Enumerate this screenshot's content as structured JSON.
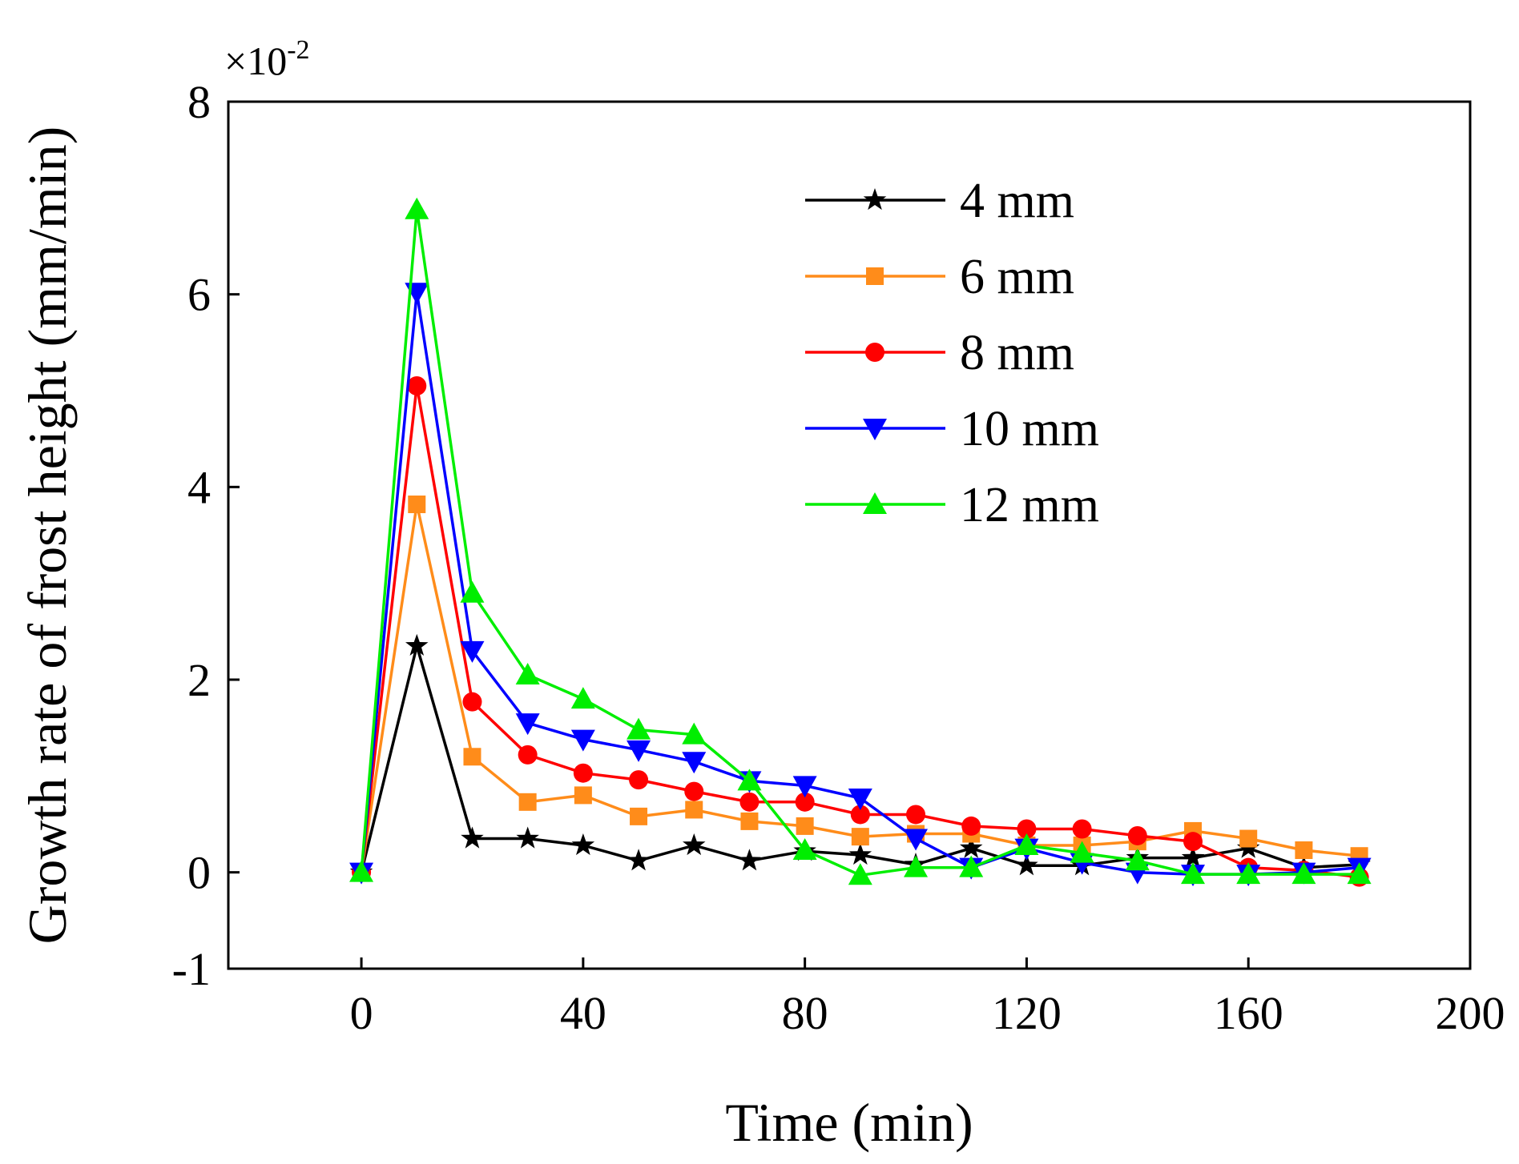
{
  "chart_data": {
    "type": "line",
    "title": "",
    "xlabel": "Time (min)",
    "ylabel": "Growth rate of frost height (mm/min)",
    "y_scale_label": "×10",
    "y_scale_exponent": "-2",
    "xlim": [
      -24,
      200
    ],
    "ylim": [
      -1,
      8
    ],
    "xticks": [
      0,
      40,
      80,
      120,
      160,
      200
    ],
    "yticks": [
      -1,
      0,
      2,
      4,
      6,
      8
    ],
    "xtick_labels": [
      "0",
      "40",
      "80",
      "120",
      "160",
      "200"
    ],
    "ytick_labels": [
      "-1",
      "0",
      "2",
      "4",
      "6",
      "8"
    ],
    "legend_position": "top-right",
    "x": [
      0,
      10,
      20,
      30,
      40,
      50,
      60,
      70,
      80,
      90,
      100,
      110,
      120,
      130,
      140,
      150,
      160,
      170,
      180
    ],
    "series": [
      {
        "name": "4 mm",
        "color": "#000000",
        "marker": "star",
        "values": [
          0,
          2.35,
          0.35,
          0.35,
          0.28,
          0.12,
          0.28,
          0.12,
          0.22,
          0.18,
          0.08,
          0.25,
          0.07,
          0.07,
          0.15,
          0.15,
          0.25,
          0.05,
          0.08
        ]
      },
      {
        "name": "6 mm",
        "color": "#ff8c1a",
        "marker": "square",
        "values": [
          0,
          3.82,
          1.2,
          0.73,
          0.8,
          0.58,
          0.65,
          0.53,
          0.48,
          0.37,
          0.4,
          0.4,
          0.28,
          0.28,
          0.32,
          0.43,
          0.35,
          0.23,
          0.17
        ]
      },
      {
        "name": "8 mm",
        "color": "#ff0000",
        "marker": "circle",
        "values": [
          0,
          5.05,
          1.77,
          1.22,
          1.03,
          0.96,
          0.84,
          0.73,
          0.73,
          0.6,
          0.6,
          0.48,
          0.45,
          0.45,
          0.38,
          0.32,
          0.05,
          0.02,
          -0.05
        ]
      },
      {
        "name": "10 mm",
        "color": "#0000ff",
        "marker": "triangle-down",
        "values": [
          0,
          6.02,
          2.3,
          1.55,
          1.38,
          1.27,
          1.15,
          0.95,
          0.9,
          0.77,
          0.35,
          0.05,
          0.25,
          0.1,
          0.0,
          -0.02,
          -0.02,
          0.0,
          0.05
        ]
      },
      {
        "name": "12 mm",
        "color": "#00ee00",
        "marker": "triangle-up",
        "values": [
          0,
          6.88,
          2.9,
          2.05,
          1.8,
          1.48,
          1.43,
          0.95,
          0.23,
          -0.03,
          0.05,
          0.05,
          0.28,
          0.2,
          0.12,
          -0.02,
          -0.02,
          -0.02,
          -0.02
        ]
      }
    ]
  }
}
